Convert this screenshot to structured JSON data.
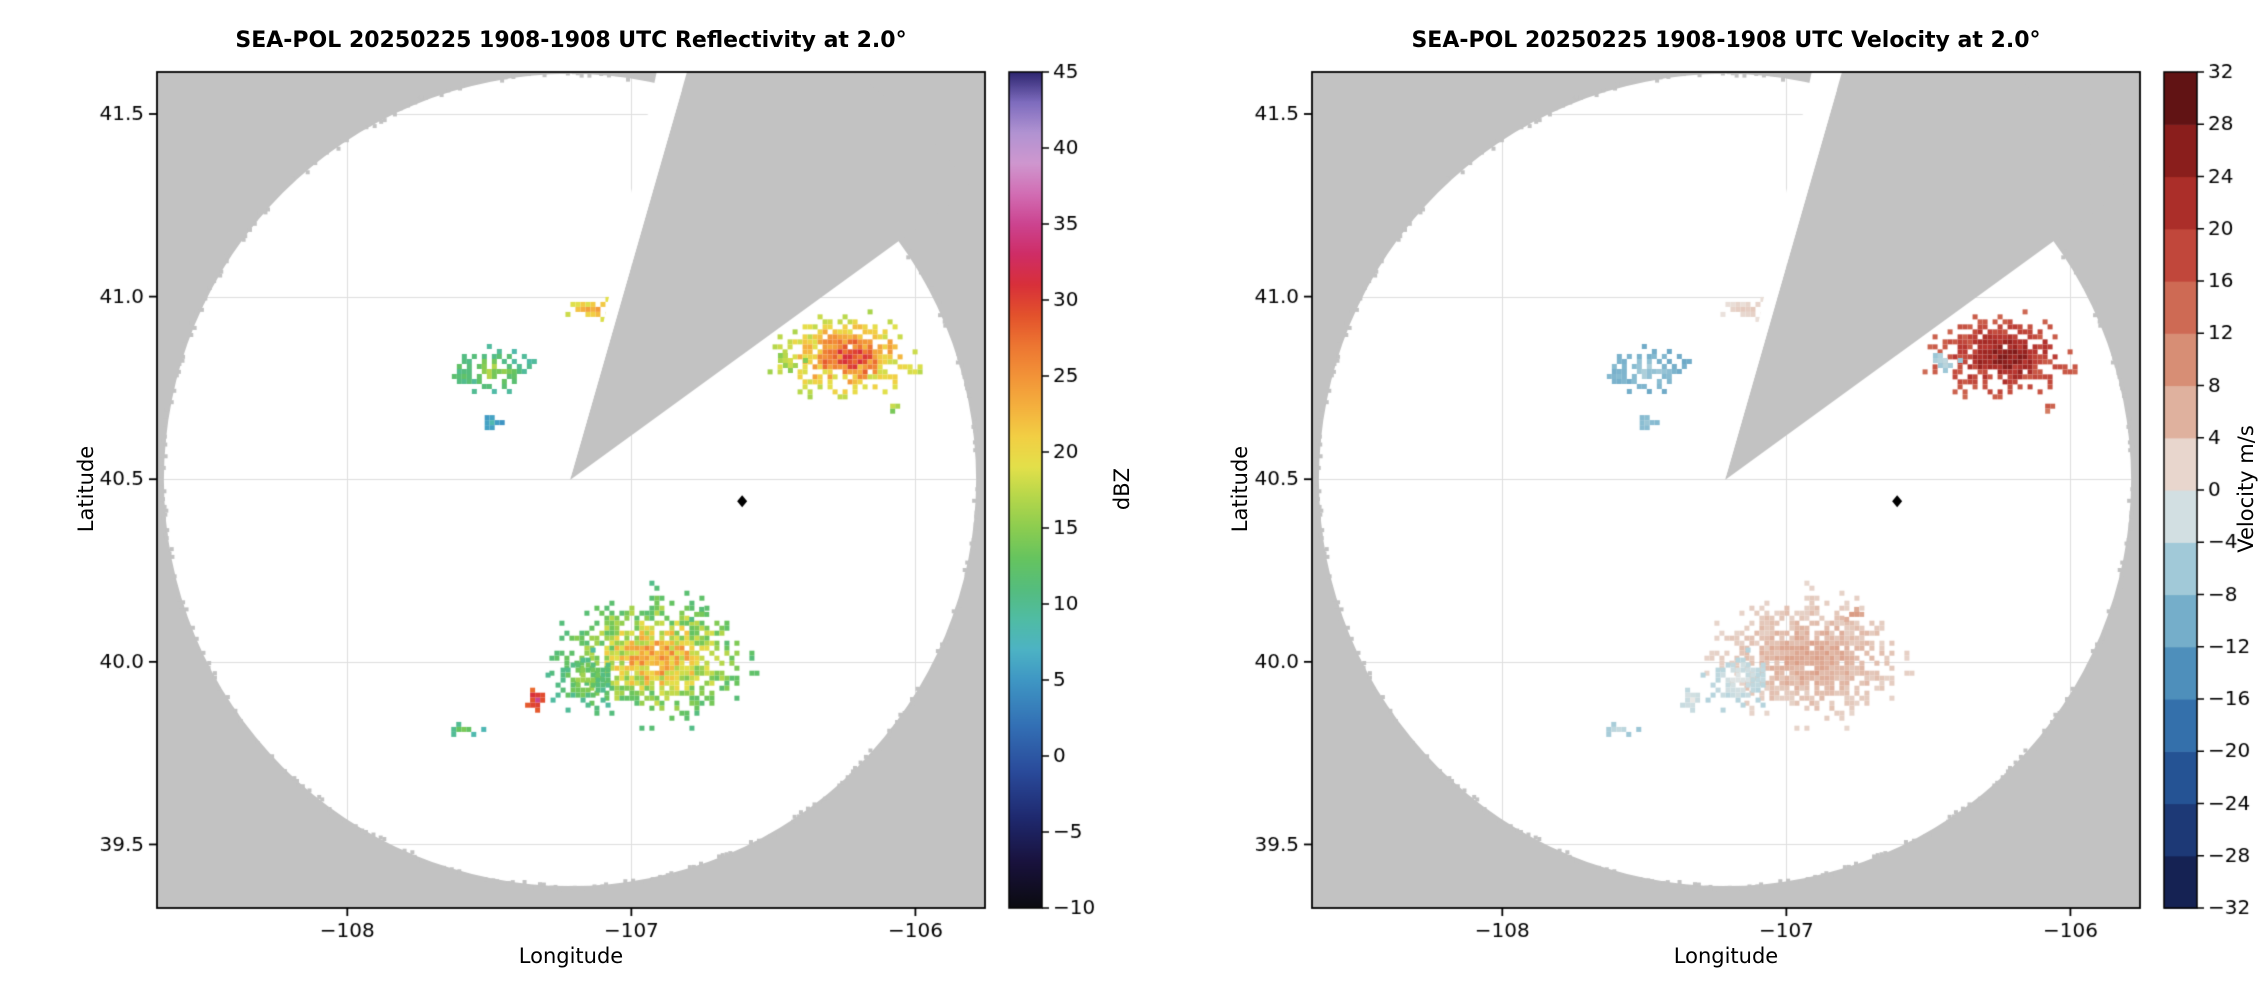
{
  "figure": {
    "background": "#ffffff",
    "mask_color": "#c2c2c2",
    "grid_color": "#dedede",
    "frame_color": "#000000",
    "text_color": "#000000",
    "marker_color": "#000000"
  },
  "chart_data": {
    "type": "heatmap",
    "description": "Two-panel plan-position radar display: reflectivity (left) and radial velocity (right) on latitude/longitude axes with gray no-data mask outside radar range and in an unscanned sector to the north-northeast.",
    "panels": [
      {
        "title": "SEA-POL 20250225 1908-1908 UTC Reflectivity at 2.0°",
        "xlabel": "Longitude",
        "ylabel": "Latitude",
        "field": "z",
        "xlim": [
          -108.67,
          -105.755
        ],
        "ylim": [
          39.326,
          41.615
        ],
        "xticks": [
          -108,
          -107,
          -106
        ],
        "yticks": [
          39.5,
          40.0,
          40.5,
          41.0,
          41.5
        ],
        "grid": true,
        "colorbar": {
          "label": "dBZ",
          "min": -10,
          "max": 45,
          "ticks": [
            45,
            40,
            35,
            30,
            25,
            20,
            15,
            10,
            5,
            0,
            -5,
            -10
          ],
          "discrete": false,
          "stops": [
            [
              -10,
              "#0b0b10"
            ],
            [
              -7,
              "#19123d"
            ],
            [
              -4,
              "#1f2a70"
            ],
            [
              -1,
              "#2a4b9b"
            ],
            [
              2,
              "#3370b5"
            ],
            [
              5,
              "#3f97c4"
            ],
            [
              7,
              "#4db3c4"
            ],
            [
              9,
              "#50bca4"
            ],
            [
              11,
              "#55bd7d"
            ],
            [
              13,
              "#66c45f"
            ],
            [
              15,
              "#8ccd50"
            ],
            [
              17,
              "#b5d74b"
            ],
            [
              19,
              "#e3e04a"
            ],
            [
              21,
              "#f2cf44"
            ],
            [
              23,
              "#f4b03e"
            ],
            [
              25,
              "#f29338"
            ],
            [
              27,
              "#ed7632"
            ],
            [
              29,
              "#e3522c"
            ],
            [
              31,
              "#d8303a"
            ],
            [
              33,
              "#cf2d66"
            ],
            [
              35,
              "#cc4490"
            ],
            [
              37,
              "#d26eb4"
            ],
            [
              39,
              "#cf97cf"
            ],
            [
              41,
              "#b193d2"
            ],
            [
              43,
              "#7e6cbe"
            ],
            [
              45,
              "#2e2670"
            ]
          ]
        }
      },
      {
        "title": "SEA-POL 20250225 1908-1908 UTC Velocity at 2.0°",
        "xlabel": "Longitude",
        "ylabel": "Latitude",
        "field": "v",
        "xlim": [
          -108.67,
          -105.755
        ],
        "ylim": [
          39.326,
          41.615
        ],
        "xticks": [
          -108,
          -107,
          -106
        ],
        "yticks": [
          39.5,
          40.0,
          40.5,
          41.0,
          41.5
        ],
        "grid": true,
        "colorbar": {
          "label": "Velocity m/s",
          "min": -32,
          "max": 32,
          "ticks": [
            32,
            28,
            24,
            20,
            16,
            12,
            8,
            4,
            0,
            -4,
            -8,
            -12,
            -16,
            -20,
            -24,
            -28,
            -32
          ],
          "discrete": true,
          "band": 4,
          "stops": [
            [
              -32,
              "#10173f"
            ],
            [
              -28,
              "#1a2d66"
            ],
            [
              -24,
              "#1f4586"
            ],
            [
              -20,
              "#2a60a2"
            ],
            [
              -16,
              "#3d7fb4"
            ],
            [
              -12,
              "#5f9fc2"
            ],
            [
              -8,
              "#8abdd2"
            ],
            [
              -4,
              "#b8d5dd"
            ],
            [
              0,
              "#ece9e6"
            ],
            [
              4,
              "#e3c3b4"
            ],
            [
              8,
              "#db9f88"
            ],
            [
              12,
              "#d37c62"
            ],
            [
              16,
              "#c95745"
            ],
            [
              20,
              "#b93731"
            ],
            [
              24,
              "#9c2420"
            ],
            [
              28,
              "#771717"
            ],
            [
              32,
              "#4a0e10"
            ]
          ]
        }
      }
    ],
    "radar": {
      "center_lon": -107.216,
      "center_lat": 40.498,
      "radius_deg_lat": 1.112,
      "no_data_sector_az": [
        16,
        54
      ],
      "gap_sector_az": [
        12,
        16
      ],
      "site_marker": [
        -106.61,
        40.44
      ]
    },
    "echoes": [
      {
        "id": "north-arc",
        "lon": -107.1,
        "lat": 40.965,
        "rx": 0.12,
        "ry": 0.025,
        "density": 0.85,
        "seed": 11,
        "z": [
          16,
          26
        ],
        "v": [
          0,
          4
        ]
      },
      {
        "id": "nw-scatter",
        "lon": -107.5,
        "lat": 40.795,
        "rx": 0.14,
        "ry": 0.055,
        "density": 0.6,
        "seed": 22,
        "z": [
          7,
          17
        ],
        "v": [
          -12,
          -5
        ]
      },
      {
        "id": "nw-speck",
        "lon": -107.49,
        "lat": 40.655,
        "rx": 0.03,
        "ry": 0.015,
        "density": 0.85,
        "seed": 33,
        "z": [
          4,
          9
        ],
        "v": [
          -9,
          -6
        ]
      },
      {
        "id": "ne-storm",
        "lon": -106.23,
        "lat": 40.835,
        "rx": 0.22,
        "ry": 0.095,
        "density": 0.9,
        "seed": 44,
        "z": [
          14,
          31
        ],
        "v": [
          12,
          27
        ]
      },
      {
        "id": "ne-storm-west-edge",
        "lon": -106.44,
        "lat": 40.825,
        "rx": 0.045,
        "ry": 0.03,
        "density": 0.75,
        "seed": 55,
        "z": [
          13,
          19
        ],
        "v": [
          -8,
          -3
        ]
      },
      {
        "id": "ne-dash",
        "lon": -106.08,
        "lat": 40.7,
        "rx": 0.035,
        "ry": 0.015,
        "density": 0.85,
        "seed": 66,
        "z": [
          12,
          18
        ],
        "v": [
          10,
          16
        ]
      },
      {
        "id": "south-blob",
        "lon": -106.91,
        "lat": 40.01,
        "rx": 0.29,
        "ry": 0.15,
        "density": 0.85,
        "seed": 77,
        "z": [
          8,
          26
        ],
        "v": [
          1,
          8
        ]
      },
      {
        "id": "south-blob-west",
        "lon": -107.17,
        "lat": 39.95,
        "rx": 0.1,
        "ry": 0.07,
        "density": 0.75,
        "seed": 88,
        "z": [
          8,
          16
        ],
        "v": [
          -5,
          -1
        ]
      },
      {
        "id": "south-core",
        "lon": -107.33,
        "lat": 39.895,
        "rx": 0.035,
        "ry": 0.027,
        "density": 1.0,
        "seed": 99,
        "z": [
          26,
          35
        ],
        "v": [
          -4,
          0
        ]
      },
      {
        "id": "south-specks",
        "lon": -107.59,
        "lat": 39.815,
        "rx": 0.055,
        "ry": 0.02,
        "density": 0.65,
        "seed": 110,
        "z": [
          7,
          14
        ],
        "v": [
          -7,
          -3
        ]
      },
      {
        "id": "mid-dash",
        "lon": -106.77,
        "lat": 40.13,
        "rx": 0.045,
        "ry": 0.015,
        "density": 0.85,
        "seed": 121,
        "z": [
          9,
          15
        ],
        "v": [
          5,
          9
        ]
      }
    ]
  }
}
